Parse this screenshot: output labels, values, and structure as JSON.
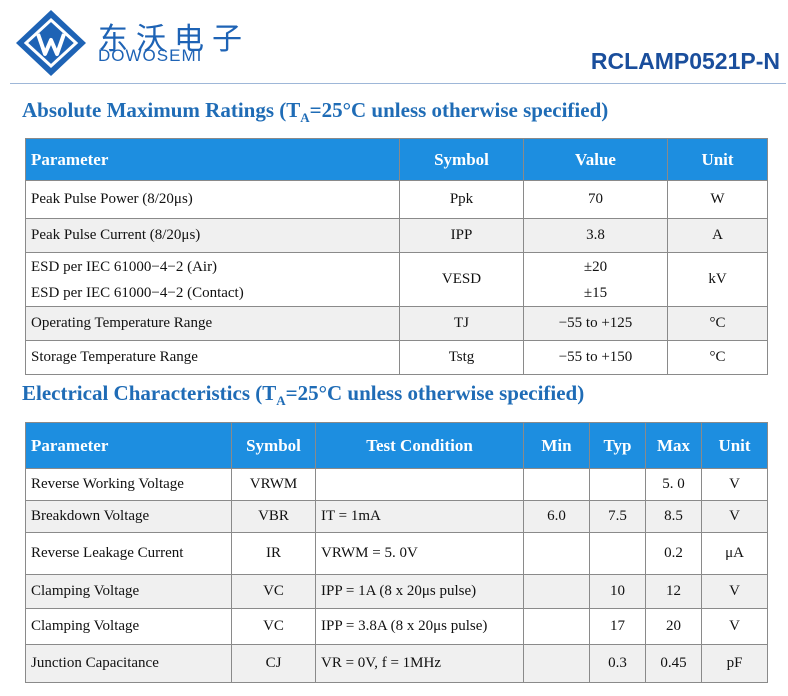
{
  "header": {
    "brand_cn": "东沃电子",
    "brand_en": "DOWOSEMI",
    "part_number": "RCLAMP0521P-N",
    "brand_color": "#1e63b5",
    "logo_icon": "dw-logo-icon"
  },
  "amr": {
    "title_pre": "Absolute Maximum Ratings (T",
    "title_sub": "A",
    "title_post": "=25°C unless otherwise specified)",
    "headers": [
      "Parameter",
      "Symbol",
      "Value",
      "Unit"
    ],
    "rows": [
      {
        "param": "Peak Pulse Power (8/20μs)",
        "symbol": "Ppk",
        "value": "70",
        "unit": "W"
      },
      {
        "param": "Peak Pulse Current (8/20μs)",
        "symbol": "IPP",
        "value": "3.8",
        "unit": "A"
      },
      {
        "param1": "ESD per IEC 61000−4−2 (Air)",
        "param2": "ESD per IEC 61000−4−2 (Contact)",
        "symbol": "VESD",
        "value1": "±20",
        "value2": "±15",
        "unit": "kV"
      },
      {
        "param": "Operating Temperature Range",
        "symbol": "TJ",
        "value": "−55 to +125",
        "unit": "°C"
      },
      {
        "param": "Storage Temperature Range",
        "symbol": "Tstg",
        "value": "−55 to +150",
        "unit": "°C"
      }
    ]
  },
  "ec": {
    "title_pre": "Electrical Characteristics (T",
    "title_sub": "A",
    "title_post": "=25°C unless otherwise specified)",
    "headers": [
      "Parameter",
      "Symbol",
      "Test Condition",
      "Min",
      "Typ",
      "Max",
      "Unit"
    ],
    "rows": [
      {
        "param": "Reverse Working Voltage",
        "symbol": "VRWM",
        "cond": "",
        "min": "",
        "typ": "",
        "max": "5. 0",
        "unit": "V"
      },
      {
        "param": "Breakdown Voltage",
        "symbol": "VBR",
        "cond": "IT = 1mA",
        "min": "6.0",
        "typ": "7.5",
        "max": "8.5",
        "unit": "V"
      },
      {
        "param": "Reverse Leakage Current",
        "symbol": "IR",
        "cond": "VRWM = 5. 0V",
        "min": "",
        "typ": "",
        "max": "0.2",
        "unit": "μA"
      },
      {
        "param": "Clamping Voltage",
        "symbol": "VC",
        "cond": "IPP = 1A (8 x 20μs pulse)",
        "min": "",
        "typ": "10",
        "max": "12",
        "unit": "V"
      },
      {
        "param": "Clamping Voltage",
        "symbol": "VC",
        "cond": "IPP = 3.8A (8 x 20μs pulse)",
        "min": "",
        "typ": "17",
        "max": "20",
        "unit": "V"
      },
      {
        "param": "Junction Capacitance",
        "symbol": "CJ",
        "cond": "VR = 0V, f = 1MHz",
        "min": "",
        "typ": "0.3",
        "max": "0.45",
        "unit": "pF"
      }
    ]
  }
}
